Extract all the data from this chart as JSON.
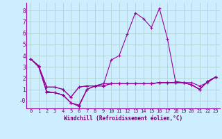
{
  "bg_color": "#cceeff",
  "grid_color": "#aacccc",
  "line_color": "#990099",
  "xlabel": "Windchill (Refroidissement éolien,°C)",
  "label_color": "#660066",
  "xlim": [
    -0.5,
    23.5
  ],
  "ylim": [
    -0.7,
    8.7
  ],
  "yticks": [
    0,
    1,
    2,
    3,
    4,
    5,
    6,
    7,
    8
  ],
  "ytick_labels": [
    "-0",
    "1",
    "2",
    "3",
    "4",
    "5",
    "6",
    "7",
    "8"
  ],
  "xticks": [
    0,
    1,
    2,
    3,
    4,
    5,
    6,
    7,
    8,
    9,
    10,
    11,
    12,
    13,
    14,
    15,
    16,
    17,
    18,
    19,
    20,
    21,
    22,
    23
  ],
  "series": [
    [
      3.7,
      3.1,
      0.7,
      0.7,
      0.5,
      -0.2,
      -0.4,
      1.0,
      1.3,
      1.3,
      1.5,
      1.5,
      1.5,
      1.5,
      1.5,
      1.5,
      1.6,
      1.6,
      1.6,
      1.6,
      1.4,
      1.0,
      1.7,
      2.1
    ],
    [
      3.7,
      3.1,
      1.2,
      1.2,
      1.0,
      0.3,
      1.2,
      1.3,
      1.3,
      1.5,
      1.5,
      1.5,
      1.5,
      1.5,
      1.5,
      1.5,
      1.6,
      1.6,
      1.6,
      1.6,
      1.4,
      1.0,
      1.7,
      2.1
    ],
    [
      3.7,
      3.0,
      0.8,
      0.7,
      0.5,
      -0.2,
      -0.5,
      1.0,
      1.3,
      1.3,
      3.6,
      4.0,
      5.9,
      7.8,
      7.3,
      6.5,
      8.2,
      5.5,
      1.7,
      1.6,
      1.6,
      1.3,
      1.6,
      2.1
    ],
    [
      3.7,
      3.0,
      0.8,
      0.7,
      0.5,
      -0.2,
      -0.5,
      1.0,
      1.3,
      1.3,
      1.5,
      1.5,
      1.5,
      1.5,
      1.5,
      1.5,
      1.6,
      1.6,
      1.6,
      1.6,
      1.4,
      1.0,
      1.7,
      2.1
    ],
    [
      3.7,
      3.0,
      1.2,
      1.2,
      1.0,
      0.3,
      1.2,
      1.3,
      1.3,
      1.5,
      1.5,
      1.5,
      1.5,
      1.5,
      1.5,
      1.5,
      1.6,
      1.6,
      1.6,
      1.6,
      1.4,
      1.0,
      1.7,
      2.1
    ]
  ]
}
